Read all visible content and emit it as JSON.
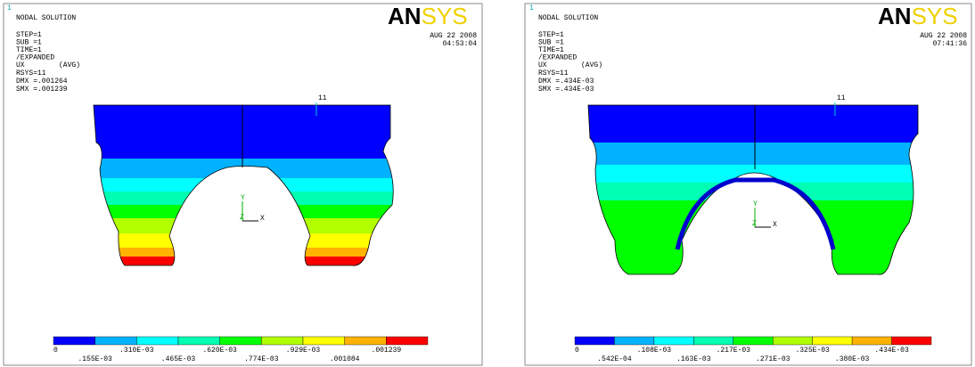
{
  "panels": [
    {
      "marker": "1",
      "title": "NODAL SOLUTION",
      "info": [
        "STEP=1",
        "SUB =1",
        "TIME=1",
        "/EXPANDED"
      ],
      "ux": "UX",
      "avg": "(AVG)",
      "rsys": "RSYS=11",
      "dmx": "DMX =.001264",
      "smx": "SMX =.001239",
      "logo_an": "AN",
      "logo_sys": "SYS",
      "date": "AUG 22 2008",
      "time": "04:53:04",
      "node": "11",
      "triad": {
        "y": "Y",
        "z": "Z",
        "x": "X"
      },
      "legend_top": [
        "0",
        ".310E-03",
        ".620E-03",
        ".929E-03",
        ".001239"
      ],
      "legend_bottom": [
        ".155E-03",
        ".465E-03",
        ".774E-03",
        ".001084"
      ]
    },
    {
      "marker": "1",
      "title": "NODAL SOLUTION",
      "info": [
        "STEP=1",
        "SUB =1",
        "TIME=1",
        "/EXPANDED"
      ],
      "ux": "UX",
      "avg": "(AVG)",
      "rsys": "RSYS=11",
      "dmx": "DMX =.434E-03",
      "smx": "SMX =.434E-03",
      "logo_an": "AN",
      "logo_sys": "SYS",
      "date": "AUG 22 2008",
      "time": "07:41:36",
      "node": "11",
      "triad": {
        "y": "Y",
        "z": "Z",
        "x": "X"
      },
      "legend_top": [
        "0",
        ".108E-03",
        ".217E-03",
        ".325E-03",
        ".434E-03"
      ],
      "legend_bottom": [
        ".542E-04",
        ".163E-03",
        ".271E-03",
        ".380E-03"
      ]
    }
  ]
}
